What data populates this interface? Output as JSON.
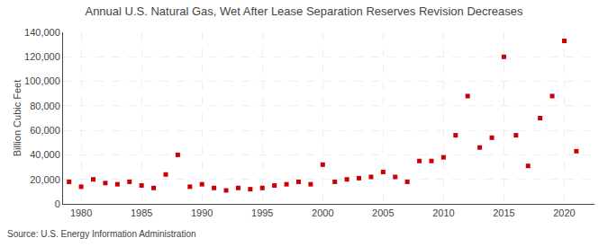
{
  "chart_data": {
    "type": "scatter",
    "title": "Annual U.S. Natural Gas, Wet After Lease Separation Reserves Revision Decreases",
    "ylabel": "Billion Cubic Feet",
    "annotations": [
      "Source: U.S. Energy Information Administration"
    ],
    "x": [
      1979,
      1980,
      1981,
      1982,
      1983,
      1984,
      1985,
      1986,
      1987,
      1988,
      1989,
      1990,
      1991,
      1992,
      1993,
      1994,
      1995,
      1996,
      1997,
      1998,
      1999,
      2000,
      2001,
      2002,
      2003,
      2004,
      2005,
      2006,
      2007,
      2008,
      2009,
      2010,
      2011,
      2012,
      2013,
      2014,
      2015,
      2016,
      2017,
      2018,
      2019,
      2020,
      2021
    ],
    "values": [
      18000,
      14000,
      20000,
      17000,
      16000,
      18000,
      15000,
      13000,
      24000,
      40000,
      14000,
      16000,
      13000,
      11000,
      13000,
      12000,
      13000,
      15000,
      16000,
      18000,
      16000,
      32000,
      18000,
      20000,
      21000,
      22000,
      26000,
      22000,
      18000,
      35000,
      35000,
      38000,
      56000,
      88000,
      46000,
      54000,
      120000,
      56000,
      31000,
      70000,
      88000,
      133000,
      43000
    ],
    "color": "#cc0000",
    "marker": "square",
    "xlim": [
      1978.5,
      2022.5
    ],
    "ylim": [
      0,
      140000
    ],
    "xticks": [
      1980,
      1985,
      1990,
      1995,
      2000,
      2005,
      2010,
      2015,
      2020
    ],
    "yticks": [
      0,
      {
        "value": 20000,
        "label": "20,000"
      },
      {
        "value": 40000,
        "label": "40,000"
      },
      {
        "value": 60000,
        "label": "60,000"
      },
      {
        "value": 80000,
        "label": "80,000"
      },
      {
        "value": 100000,
        "label": "100,000"
      },
      {
        "value": 120000,
        "label": "120,000"
      },
      {
        "value": 140000,
        "label": "140,000"
      }
    ],
    "grid": true
  }
}
